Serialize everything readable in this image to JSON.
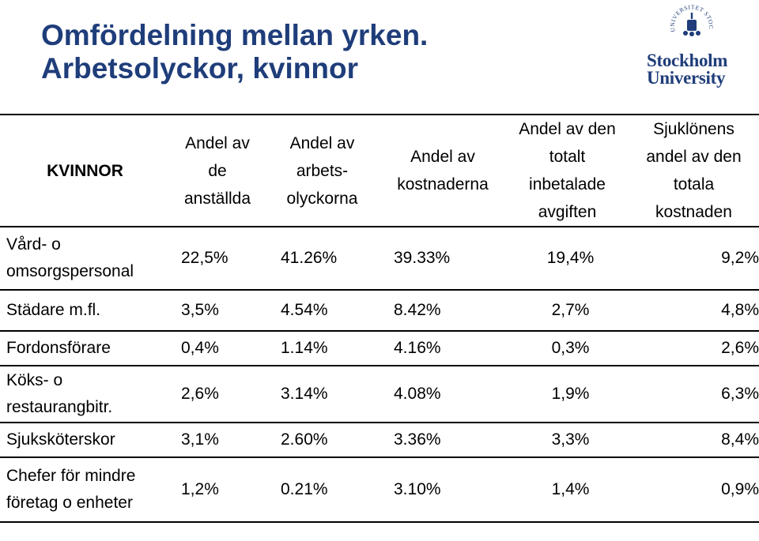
{
  "title": {
    "line1": "Omfördelning mellan yrken.",
    "line2": "Arbetsolyckor, kvinnor"
  },
  "logo": {
    "line1": "Stockholm",
    "line2": "University",
    "seal_text": "UNIVERSITET STOCKHOLMS"
  },
  "table": {
    "corner": "KVINNOR",
    "headers": [
      [
        "Andel av",
        "de",
        "anställda"
      ],
      [
        "Andel av",
        "arbets-",
        "olyckorna"
      ],
      [
        "Andel av",
        "kostnaderna"
      ],
      [
        "Andel av den",
        "totalt",
        "inbetalade",
        "avgiften"
      ],
      [
        "Sjuklönens",
        "andel av den",
        "totala",
        "kostnaden"
      ]
    ],
    "rows": [
      {
        "label": [
          "Vård- o",
          "omsorgspersonal"
        ],
        "values": [
          "22,5%",
          "41.26%",
          "39.33%",
          "19,4%",
          "9,2%"
        ]
      },
      {
        "label": [
          "Städare m.fl."
        ],
        "values": [
          "3,5%",
          "4.54%",
          "8.42%",
          "2,7%",
          "4,8%"
        ]
      },
      {
        "label": [
          "Fordonsförare"
        ],
        "values": [
          "0,4%",
          "1.14%",
          "4.16%",
          "0,3%",
          "2,6%"
        ]
      },
      {
        "label": [
          "Köks- o",
          "restaurangbitr."
        ],
        "values": [
          "2,6%",
          "3.14%",
          "4.08%",
          "1,9%",
          "6,3%"
        ]
      },
      {
        "label": [
          "Sjuksköterskor"
        ],
        "values": [
          "3,1%",
          "2.60%",
          "3.36%",
          "3,3%",
          "8,4%"
        ]
      },
      {
        "label": [
          "Chefer för mindre",
          "företag o enheter"
        ],
        "values": [
          "1,2%",
          "0.21%",
          "3.10%",
          "1,4%",
          "0,9%"
        ]
      }
    ]
  },
  "colors": {
    "title": "#1f3d7a",
    "rule": "#000000"
  }
}
